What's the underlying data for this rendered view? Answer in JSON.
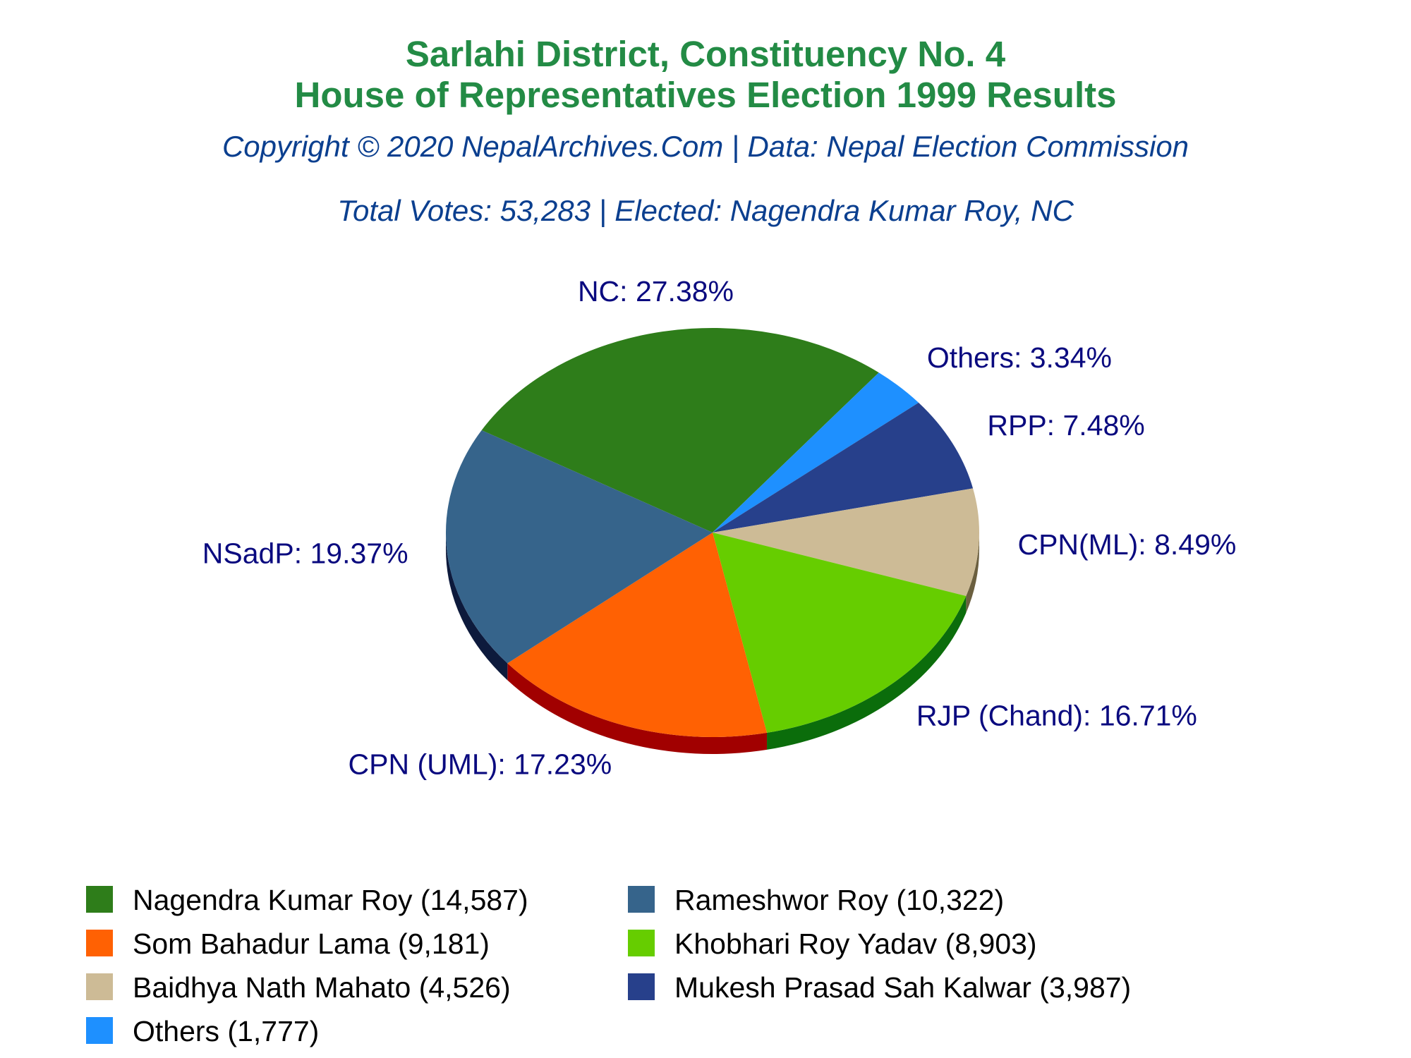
{
  "chart_data": {
    "type": "pie",
    "title": "Sarlahi District, Constituency No. 4",
    "title2": "House of Representatives Election 1999 Results",
    "subtitle": "Copyright © 2020 NepalArchives.Com | Data: Nepal Election Commission",
    "summary": "Total Votes: 53,283 | Elected: Nagendra Kumar Roy, NC",
    "slices": [
      {
        "party": "NC",
        "label": "NC: 27.38%",
        "percent": 27.38,
        "candidate": "Nagendra Kumar Roy",
        "votes": 14587,
        "legend": "Nagendra Kumar Roy (14,587)",
        "color": "#2e7d1a",
        "side": "#1d5410"
      },
      {
        "party": "Others",
        "label": "Others: 3.34%",
        "percent": 3.34,
        "candidate": "Others",
        "votes": 1777,
        "legend": "Others (1,777)",
        "color": "#1e90ff",
        "side": "#105fb0"
      },
      {
        "party": "RPP",
        "label": "RPP: 7.48%",
        "percent": 7.48,
        "candidate": "Mukesh Prasad Sah Kalwar",
        "votes": 3987,
        "legend": "Mukesh Prasad Sah Kalwar (3,987)",
        "color": "#27408b",
        "side": "#15235a"
      },
      {
        "party": "CPN(ML)",
        "label": "CPN(ML): 8.49%",
        "percent": 8.49,
        "candidate": "Baidhya Nath Mahato",
        "votes": 4526,
        "legend": "Baidhya Nath Mahato (4,526)",
        "color": "#cdbb96",
        "side": "#6b5f3f"
      },
      {
        "party": "RJP (Chand)",
        "label": "RJP (Chand): 16.71%",
        "percent": 16.71,
        "candidate": "Khobhari Roy Yadav",
        "votes": 8903,
        "legend": "Khobhari Roy Yadav (8,903)",
        "color": "#66cd00",
        "side": "#0b6d0b"
      },
      {
        "party": "CPN (UML)",
        "label": "CPN (UML): 17.23%",
        "percent": 17.23,
        "candidate": "Som Bahadur Lama",
        "votes": 9181,
        "legend": "Som Bahadur Lama (9,181)",
        "color": "#ff6103",
        "side": "#a10000"
      },
      {
        "party": "NSadP",
        "label": "NSadP: 19.37%",
        "percent": 19.37,
        "candidate": "Rameshwor Roy",
        "votes": 10322,
        "legend": "Rameshwor Roy (10,322)",
        "color": "#36648b",
        "side": "#0d1a3c"
      }
    ],
    "legend_order": [
      "NC",
      "NSadP",
      "CPN (UML)",
      "RJP (Chand)",
      "CPN(ML)",
      "RPP",
      "Others"
    ]
  }
}
